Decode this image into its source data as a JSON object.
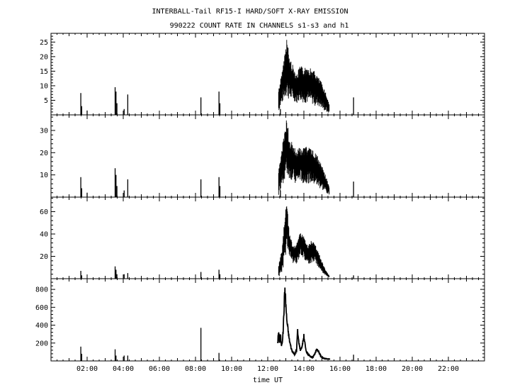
{
  "title": "INTERBALL-Tail RF15-I HARD/SOFT X-RAY EMISSION",
  "subtitle": "990222  COUNT RATE IN CHANNELS s1-s3 and h1",
  "chart_data": {
    "type": "line",
    "xlabel": "time UT",
    "xlim": [
      0,
      24
    ],
    "x_ticks": [
      2,
      4,
      6,
      8,
      10,
      12,
      14,
      16,
      18,
      20,
      22
    ],
    "x_tick_labels": [
      "02:00",
      "04:00",
      "06:00",
      "08:00",
      "10:00",
      "12:00",
      "14:00",
      "16:00",
      "18:00",
      "20:00",
      "22:00"
    ],
    "grid": false,
    "panels": [
      {
        "channel": "s1",
        "ylim": [
          0,
          28
        ],
        "yticks": [
          5,
          10,
          15,
          20,
          25
        ],
        "spikes": [
          {
            "t": 1.65,
            "v": 7.5
          },
          {
            "t": 1.7,
            "v": 3
          },
          {
            "t": 2.0,
            "v": 1.5
          },
          {
            "t": 3.55,
            "v": 9.5
          },
          {
            "t": 3.6,
            "v": 8
          },
          {
            "t": 3.65,
            "v": 4
          },
          {
            "t": 4.05,
            "v": 2
          },
          {
            "t": 4.25,
            "v": 7
          },
          {
            "t": 8.3,
            "v": 6
          },
          {
            "t": 9.3,
            "v": 8
          },
          {
            "t": 9.35,
            "v": 4
          },
          {
            "t": 12.7,
            "v": 2
          },
          {
            "t": 16.75,
            "v": 6
          }
        ],
        "event": {
          "t": [
            12.6,
            12.8,
            12.95,
            13.05,
            13.2,
            13.4,
            13.6,
            13.8,
            14.0,
            14.2,
            14.4,
            14.6,
            14.8,
            15.0,
            15.2,
            15.4
          ],
          "lo": [
            1,
            4,
            6,
            6,
            5,
            5,
            4,
            5,
            4,
            4,
            4,
            3,
            3,
            2,
            1,
            0.5
          ],
          "hi": [
            9,
            15,
            22,
            27,
            20,
            17,
            14,
            17,
            16,
            17,
            16,
            15,
            13,
            11,
            8,
            4
          ]
        }
      },
      {
        "channel": "s2",
        "ylim": [
          0,
          37
        ],
        "yticks": [
          10,
          20,
          30
        ],
        "spikes": [
          {
            "t": 1.65,
            "v": 9
          },
          {
            "t": 1.7,
            "v": 4
          },
          {
            "t": 2.0,
            "v": 2
          },
          {
            "t": 3.55,
            "v": 13
          },
          {
            "t": 3.6,
            "v": 10
          },
          {
            "t": 3.65,
            "v": 5
          },
          {
            "t": 4.05,
            "v": 3
          },
          {
            "t": 4.25,
            "v": 8
          },
          {
            "t": 8.3,
            "v": 8
          },
          {
            "t": 9.3,
            "v": 9
          },
          {
            "t": 9.35,
            "v": 5
          },
          {
            "t": 12.7,
            "v": 3
          },
          {
            "t": 16.75,
            "v": 7
          }
        ],
        "event": {
          "t": [
            12.6,
            12.8,
            12.95,
            13.05,
            13.2,
            13.4,
            13.6,
            13.8,
            14.0,
            14.2,
            14.4,
            14.6,
            14.8,
            15.0,
            15.2,
            15.4
          ],
          "lo": [
            1,
            5,
            8,
            9,
            8,
            7,
            6,
            7,
            6,
            6,
            6,
            5,
            4,
            3,
            2,
            1
          ],
          "hi": [
            12,
            22,
            33,
            36,
            27,
            24,
            21,
            23,
            22,
            23,
            22,
            20,
            18,
            15,
            10,
            5
          ]
        }
      },
      {
        "channel": "s3",
        "ylim": [
          0,
          73
        ],
        "yticks": [
          20,
          40,
          60
        ],
        "spikes": [
          {
            "t": 1.65,
            "v": 7
          },
          {
            "t": 1.7,
            "v": 3
          },
          {
            "t": 3.55,
            "v": 11
          },
          {
            "t": 3.6,
            "v": 8
          },
          {
            "t": 3.65,
            "v": 4
          },
          {
            "t": 4.05,
            "v": 4
          },
          {
            "t": 4.25,
            "v": 5
          },
          {
            "t": 8.3,
            "v": 6
          },
          {
            "t": 9.3,
            "v": 8
          },
          {
            "t": 9.35,
            "v": 4
          },
          {
            "t": 16.75,
            "v": 3
          }
        ],
        "event": {
          "t": [
            12.6,
            12.8,
            12.95,
            13.05,
            13.2,
            13.4,
            13.6,
            13.8,
            14.0,
            14.2,
            14.4,
            14.6,
            14.8,
            15.0,
            15.2,
            15.4
          ],
          "lo": [
            1,
            6,
            14,
            30,
            20,
            14,
            12,
            22,
            18,
            12,
            14,
            15,
            10,
            6,
            3,
            1
          ],
          "hi": [
            12,
            28,
            60,
            70,
            40,
            30,
            32,
            42,
            38,
            30,
            34,
            32,
            24,
            16,
            8,
            3
          ]
        }
      },
      {
        "channel": "h1",
        "ylim": [
          0,
          920
        ],
        "yticks": [
          200,
          400,
          600,
          800
        ],
        "spikes": [
          {
            "t": 1.65,
            "v": 160
          },
          {
            "t": 1.7,
            "v": 80
          },
          {
            "t": 3.55,
            "v": 130
          },
          {
            "t": 3.6,
            "v": 60
          },
          {
            "t": 4.05,
            "v": 60
          },
          {
            "t": 4.25,
            "v": 60
          },
          {
            "t": 8.3,
            "v": 370
          },
          {
            "t": 9.3,
            "v": 90
          },
          {
            "t": 16.75,
            "v": 70
          }
        ],
        "line": {
          "t": [
            12.55,
            12.6,
            12.65,
            12.7,
            12.75,
            12.8,
            12.85,
            12.9,
            12.95,
            13.0,
            13.05,
            13.1,
            13.2,
            13.3,
            13.4,
            13.5,
            13.6,
            13.65,
            13.7,
            13.8,
            13.9,
            14.0,
            14.05,
            14.1,
            14.2,
            14.3,
            14.4,
            14.5,
            14.6,
            14.7,
            14.8,
            14.9,
            15.0,
            15.1,
            15.2,
            15.3,
            15.45
          ],
          "v": [
            210,
            330,
            200,
            310,
            170,
            210,
            320,
            580,
            820,
            640,
            470,
            380,
            230,
            140,
            90,
            70,
            130,
            340,
            240,
            120,
            160,
            280,
            210,
            130,
            80,
            60,
            45,
            40,
            80,
            130,
            110,
            70,
            40,
            30,
            25,
            22,
            20
          ]
        }
      }
    ]
  }
}
